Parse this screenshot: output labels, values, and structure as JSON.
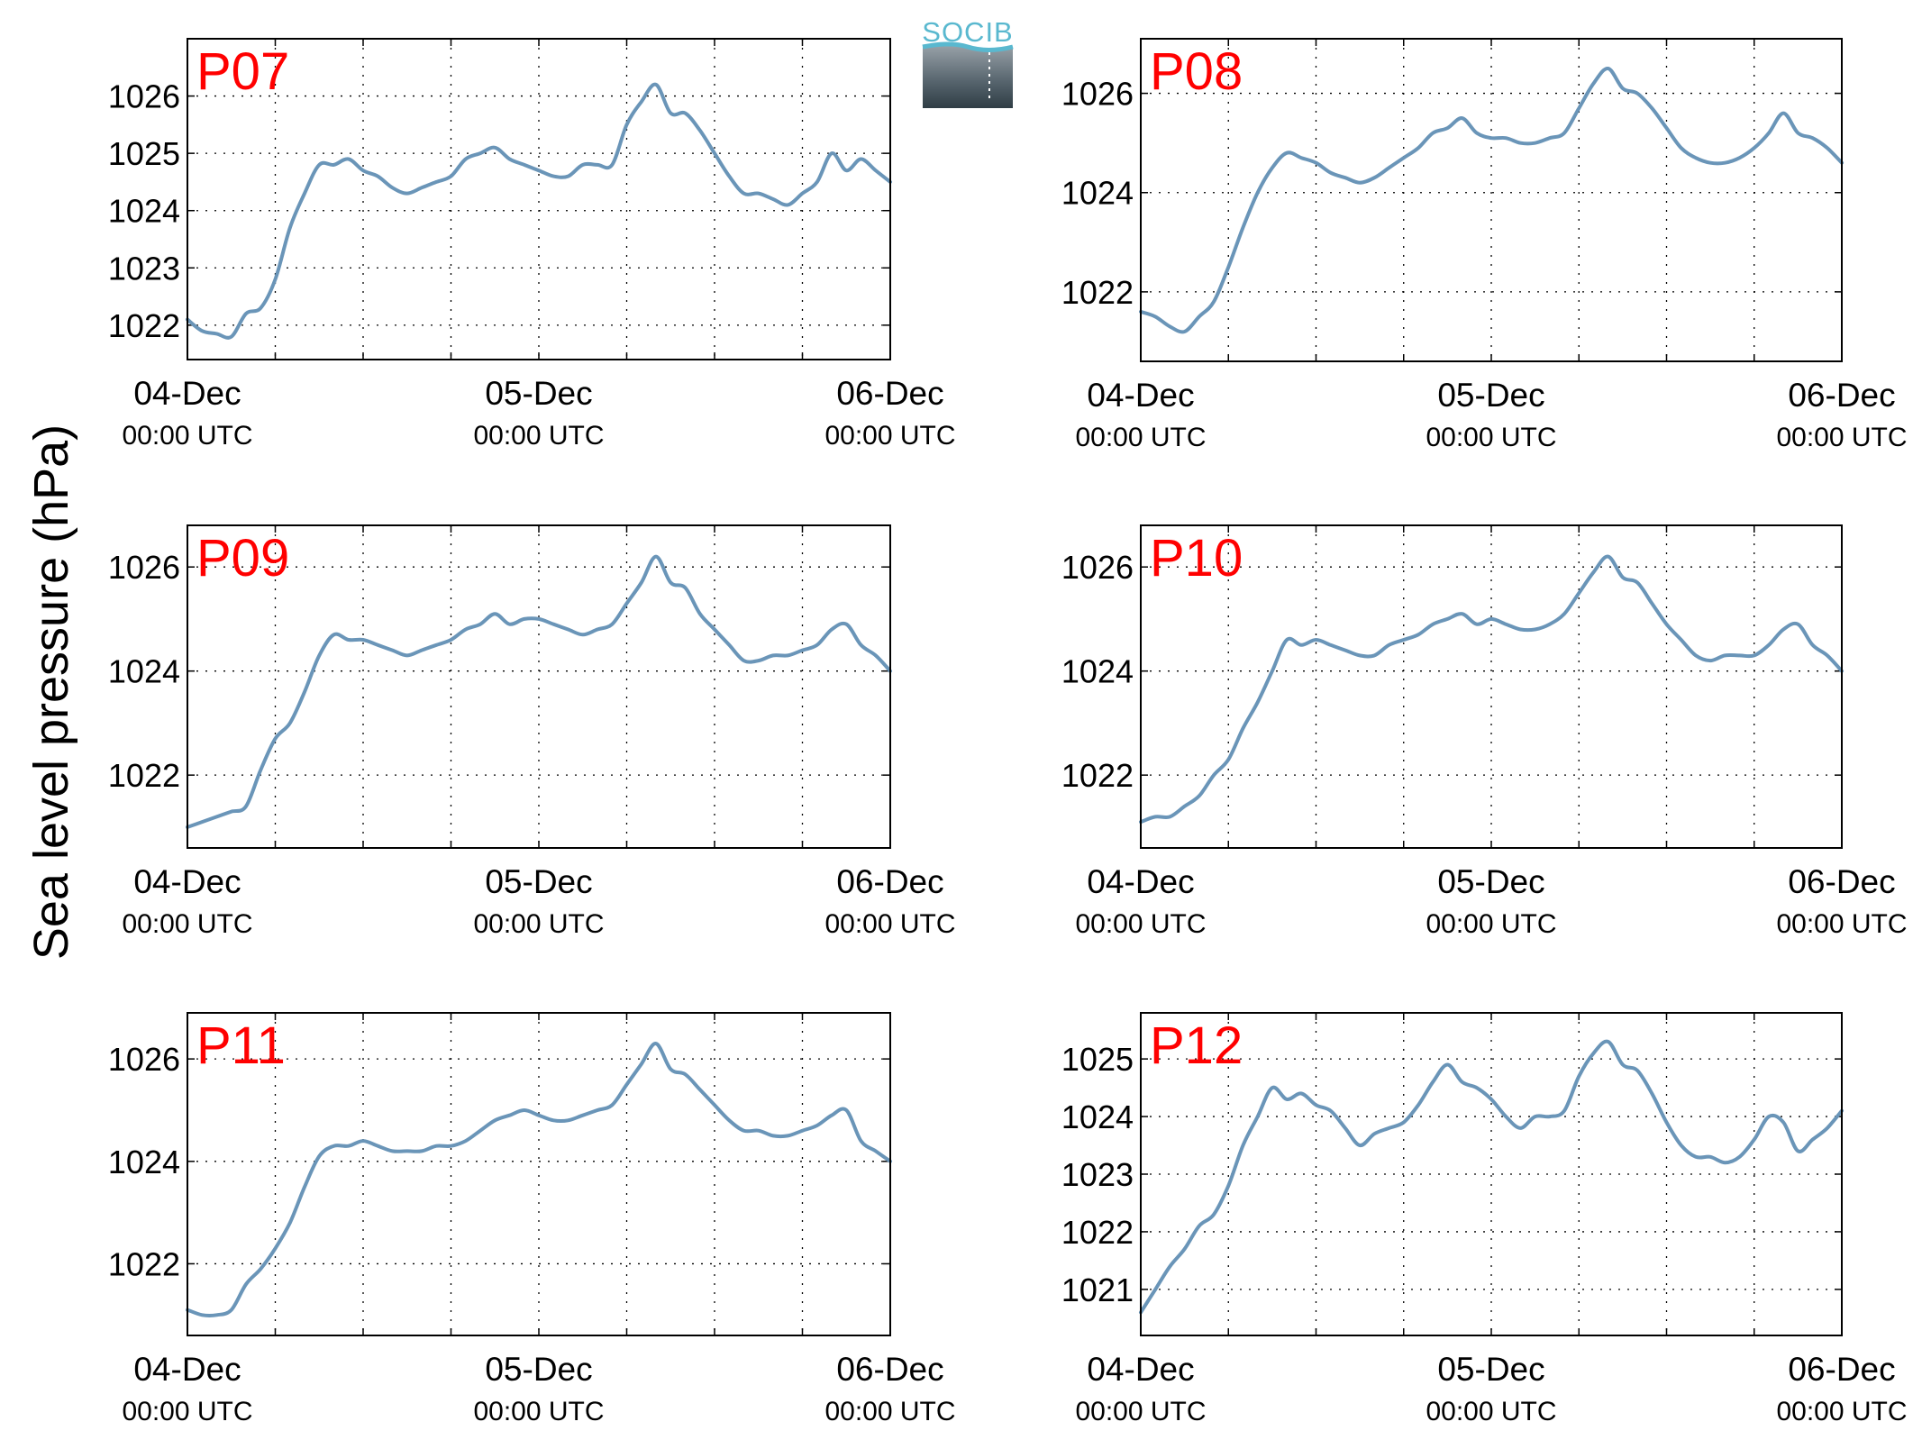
{
  "logo": {
    "text": "SOCIB"
  },
  "ylabel": "Sea level pressure (hPa)",
  "colors": {
    "line": "#6a95b8",
    "title": "#ff0000",
    "logo_accent": "#59b8cf"
  },
  "x_tick_dates": [
    "04-Dec",
    "05-Dec",
    "06-Dec"
  ],
  "x_tick_times": [
    "00:00 UTC",
    "00:00 UTC",
    "00:00 UTC"
  ],
  "chart_data": [
    {
      "type": "line",
      "title": "P07",
      "xlim": [
        0,
        48
      ],
      "ylim": [
        1021.4,
        1027.0
      ],
      "yticks": [
        1022,
        1023,
        1024,
        1025,
        1026
      ],
      "grid": true,
      "x_unit": "hours since 04-Dec 00:00 UTC",
      "x": [
        0,
        1,
        2,
        3,
        4,
        5,
        6,
        7,
        8,
        9,
        10,
        11,
        12,
        13,
        14,
        15,
        16,
        17,
        18,
        19,
        20,
        21,
        22,
        23,
        24,
        25,
        26,
        27,
        28,
        29,
        30,
        31,
        32,
        33,
        34,
        35,
        36,
        37,
        38,
        39,
        40,
        41,
        42,
        43,
        44,
        45,
        46,
        47,
        48
      ],
      "y": [
        1022.1,
        1021.9,
        1021.85,
        1021.8,
        1022.2,
        1022.3,
        1022.8,
        1023.7,
        1024.3,
        1024.8,
        1024.8,
        1024.9,
        1024.7,
        1024.6,
        1024.4,
        1024.3,
        1024.4,
        1024.5,
        1024.6,
        1024.9,
        1025.0,
        1025.1,
        1024.9,
        1024.8,
        1024.7,
        1024.6,
        1024.6,
        1024.8,
        1024.8,
        1024.8,
        1025.5,
        1025.9,
        1026.2,
        1025.7,
        1025.7,
        1025.4,
        1025.0,
        1024.6,
        1024.3,
        1024.3,
        1024.2,
        1024.1,
        1024.3,
        1024.5,
        1025.0,
        1024.7,
        1024.9,
        1024.7,
        1024.5
      ]
    },
    {
      "type": "line",
      "title": "P08",
      "xlim": [
        0,
        48
      ],
      "ylim": [
        1020.6,
        1027.1
      ],
      "yticks": [
        1022,
        1024,
        1026
      ],
      "grid": true,
      "x_unit": "hours since 04-Dec 00:00 UTC",
      "x": [
        0,
        1,
        2,
        3,
        4,
        5,
        6,
        7,
        8,
        9,
        10,
        11,
        12,
        13,
        14,
        15,
        16,
        17,
        18,
        19,
        20,
        21,
        22,
        23,
        24,
        25,
        26,
        27,
        28,
        29,
        30,
        31,
        32,
        33,
        34,
        35,
        36,
        37,
        38,
        39,
        40,
        41,
        42,
        43,
        44,
        45,
        46,
        47,
        48
      ],
      "y": [
        1021.6,
        1021.5,
        1021.3,
        1021.2,
        1021.5,
        1021.8,
        1022.5,
        1023.3,
        1024.0,
        1024.5,
        1024.8,
        1024.7,
        1024.6,
        1024.4,
        1024.3,
        1024.2,
        1024.3,
        1024.5,
        1024.7,
        1024.9,
        1025.2,
        1025.3,
        1025.5,
        1025.2,
        1025.1,
        1025.1,
        1025.0,
        1025.0,
        1025.1,
        1025.2,
        1025.7,
        1026.2,
        1026.5,
        1026.1,
        1026.0,
        1025.7,
        1025.3,
        1024.9,
        1024.7,
        1024.6,
        1024.6,
        1024.7,
        1024.9,
        1025.2,
        1025.6,
        1025.2,
        1025.1,
        1024.9,
        1024.6
      ]
    },
    {
      "type": "line",
      "title": "P09",
      "xlim": [
        0,
        48
      ],
      "ylim": [
        1020.6,
        1026.8
      ],
      "yticks": [
        1022,
        1024,
        1026
      ],
      "grid": true,
      "x_unit": "hours since 04-Dec 00:00 UTC",
      "x": [
        0,
        1,
        2,
        3,
        4,
        5,
        6,
        7,
        8,
        9,
        10,
        11,
        12,
        13,
        14,
        15,
        16,
        17,
        18,
        19,
        20,
        21,
        22,
        23,
        24,
        25,
        26,
        27,
        28,
        29,
        30,
        31,
        32,
        33,
        34,
        35,
        36,
        37,
        38,
        39,
        40,
        41,
        42,
        43,
        44,
        45,
        46,
        47,
        48
      ],
      "y": [
        1021.0,
        1021.1,
        1021.2,
        1021.3,
        1021.4,
        1022.1,
        1022.7,
        1023.0,
        1023.6,
        1024.3,
        1024.7,
        1024.6,
        1024.6,
        1024.5,
        1024.4,
        1024.3,
        1024.4,
        1024.5,
        1024.6,
        1024.8,
        1024.9,
        1025.1,
        1024.9,
        1025.0,
        1025.0,
        1024.9,
        1024.8,
        1024.7,
        1024.8,
        1024.9,
        1025.3,
        1025.7,
        1026.2,
        1025.7,
        1025.6,
        1025.1,
        1024.8,
        1024.5,
        1024.2,
        1024.2,
        1024.3,
        1024.3,
        1024.4,
        1024.5,
        1024.8,
        1024.9,
        1024.5,
        1024.3,
        1024.0
      ]
    },
    {
      "type": "line",
      "title": "P10",
      "xlim": [
        0,
        48
      ],
      "ylim": [
        1020.6,
        1026.8
      ],
      "yticks": [
        1022,
        1024,
        1026
      ],
      "grid": true,
      "x_unit": "hours since 04-Dec 00:00 UTC",
      "x": [
        0,
        1,
        2,
        3,
        4,
        5,
        6,
        7,
        8,
        9,
        10,
        11,
        12,
        13,
        14,
        15,
        16,
        17,
        18,
        19,
        20,
        21,
        22,
        23,
        24,
        25,
        26,
        27,
        28,
        29,
        30,
        31,
        32,
        33,
        34,
        35,
        36,
        37,
        38,
        39,
        40,
        41,
        42,
        43,
        44,
        45,
        46,
        47,
        48
      ],
      "y": [
        1021.1,
        1021.2,
        1021.2,
        1021.4,
        1021.6,
        1022.0,
        1022.3,
        1022.9,
        1023.4,
        1024.0,
        1024.6,
        1024.5,
        1024.6,
        1024.5,
        1024.4,
        1024.3,
        1024.3,
        1024.5,
        1024.6,
        1024.7,
        1024.9,
        1025.0,
        1025.1,
        1024.9,
        1025.0,
        1024.9,
        1024.8,
        1024.8,
        1024.9,
        1025.1,
        1025.5,
        1025.9,
        1026.2,
        1025.8,
        1025.7,
        1025.3,
        1024.9,
        1024.6,
        1024.3,
        1024.2,
        1024.3,
        1024.3,
        1024.3,
        1024.5,
        1024.8,
        1024.9,
        1024.5,
        1024.3,
        1024.0
      ]
    },
    {
      "type": "line",
      "title": "P11",
      "xlim": [
        0,
        48
      ],
      "ylim": [
        1020.6,
        1026.9
      ],
      "yticks": [
        1022,
        1024,
        1026
      ],
      "grid": true,
      "x_unit": "hours since 04-Dec 00:00 UTC",
      "x": [
        0,
        1,
        2,
        3,
        4,
        5,
        6,
        7,
        8,
        9,
        10,
        11,
        12,
        13,
        14,
        15,
        16,
        17,
        18,
        19,
        20,
        21,
        22,
        23,
        24,
        25,
        26,
        27,
        28,
        29,
        30,
        31,
        32,
        33,
        34,
        35,
        36,
        37,
        38,
        39,
        40,
        41,
        42,
        43,
        44,
        45,
        46,
        47,
        48
      ],
      "y": [
        1021.1,
        1021.0,
        1021.0,
        1021.1,
        1021.6,
        1021.9,
        1022.3,
        1022.8,
        1023.5,
        1024.1,
        1024.3,
        1024.3,
        1024.4,
        1024.3,
        1024.2,
        1024.2,
        1024.2,
        1024.3,
        1024.3,
        1024.4,
        1024.6,
        1024.8,
        1024.9,
        1025.0,
        1024.9,
        1024.8,
        1024.8,
        1024.9,
        1025.0,
        1025.1,
        1025.5,
        1025.9,
        1026.3,
        1025.8,
        1025.7,
        1025.4,
        1025.1,
        1024.8,
        1024.6,
        1024.6,
        1024.5,
        1024.5,
        1024.6,
        1024.7,
        1024.9,
        1025.0,
        1024.4,
        1024.2,
        1024.0
      ]
    },
    {
      "type": "line",
      "title": "P12",
      "xlim": [
        0,
        48
      ],
      "ylim": [
        1020.2,
        1025.8
      ],
      "yticks": [
        1021,
        1022,
        1023,
        1024,
        1025
      ],
      "grid": true,
      "x_unit": "hours since 04-Dec 00:00 UTC",
      "x": [
        0,
        1,
        2,
        3,
        4,
        5,
        6,
        7,
        8,
        9,
        10,
        11,
        12,
        13,
        14,
        15,
        16,
        17,
        18,
        19,
        20,
        21,
        22,
        23,
        24,
        25,
        26,
        27,
        28,
        29,
        30,
        31,
        32,
        33,
        34,
        35,
        36,
        37,
        38,
        39,
        40,
        41,
        42,
        43,
        44,
        45,
        46,
        47,
        48
      ],
      "y": [
        1020.6,
        1021.0,
        1021.4,
        1021.7,
        1022.1,
        1022.3,
        1022.8,
        1023.5,
        1024.0,
        1024.5,
        1024.3,
        1024.4,
        1024.2,
        1024.1,
        1023.8,
        1023.5,
        1023.7,
        1023.8,
        1023.9,
        1024.2,
        1024.6,
        1024.9,
        1024.6,
        1024.5,
        1024.3,
        1024.0,
        1023.8,
        1024.0,
        1024.0,
        1024.1,
        1024.7,
        1025.1,
        1025.3,
        1024.9,
        1024.8,
        1024.4,
        1023.9,
        1023.5,
        1023.3,
        1023.3,
        1023.2,
        1023.3,
        1023.6,
        1024.0,
        1023.9,
        1023.4,
        1023.6,
        1023.8,
        1024.1
      ]
    }
  ]
}
